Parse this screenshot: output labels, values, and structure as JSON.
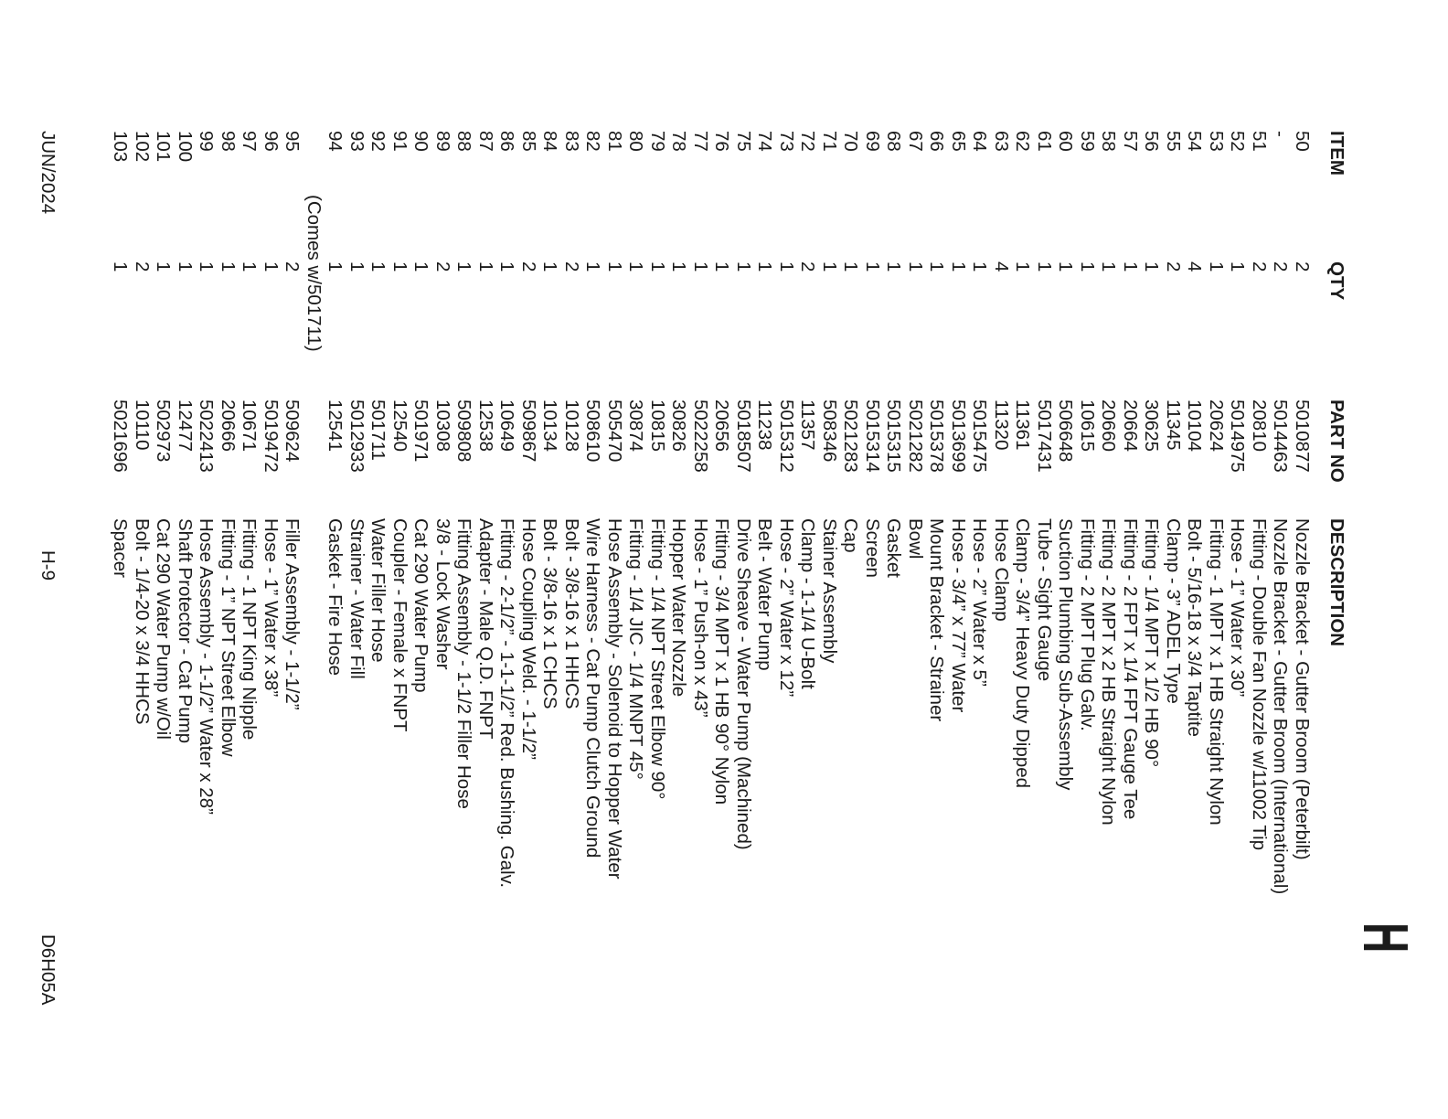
{
  "page": {
    "section_letter": "H",
    "table": {
      "headers": {
        "item": "ITEM",
        "qty": "QTY",
        "part": "PART NO",
        "desc": "DESCRIPTION"
      },
      "rows": [
        {
          "item": "50",
          "qty": "2",
          "part": "5010877",
          "desc": "Nozzle Bracket - Gutter Broom (Peterbilt)"
        },
        {
          "item": "-",
          "qty": "2",
          "part": "5014463",
          "desc": "Nozzle Bracket - Gutter Broom (International)"
        },
        {
          "item": "51",
          "qty": "2",
          "part": "20810",
          "desc": "Fitting - Double Fan Nozzle w/11002 Tip"
        },
        {
          "item": "52",
          "qty": "1",
          "part": "5014975",
          "desc": "Hose - 1” Water x 30”"
        },
        {
          "item": "53",
          "qty": "1",
          "part": "20624",
          "desc": "Fitting - 1 MPT x 1 HB Straight Nylon"
        },
        {
          "item": "54",
          "qty": "4",
          "part": "10104",
          "desc": "Bolt - 5/16-18 x 3/4 Taptite"
        },
        {
          "item": "55",
          "qty": "2",
          "part": "11345",
          "desc": "Clamp - 3” ADEL Type"
        },
        {
          "item": "56",
          "qty": "1",
          "part": "30625",
          "desc": "Fitting - 1/4 MPT x 1/2 HB 90°"
        },
        {
          "item": "57",
          "qty": "1",
          "part": "20664",
          "desc": "Fitting - 2 FPT x 1/4 FPT Gauge Tee"
        },
        {
          "item": "58",
          "qty": "1",
          "part": "20660",
          "desc": "Fitting - 2 MPT x 2 HB Straight Nylon"
        },
        {
          "item": "59",
          "qty": "1",
          "part": "10615",
          "desc": "Fitting - 2 MPT Plug Galv."
        },
        {
          "item": "60",
          "qty": "1",
          "part": "506648",
          "desc": "Suction Plumbing Sub-Assembly"
        },
        {
          "item": "61",
          "qty": "1",
          "part": "5017431",
          "desc": "Tube - Sight Gauge"
        },
        {
          "item": "62",
          "qty": "1",
          "part": "11361",
          "desc": "Clamp - 3/4” Heavy Duty Dipped"
        },
        {
          "item": "63",
          "qty": "4",
          "part": "11320",
          "desc": "Hose Clamp"
        },
        {
          "item": "64",
          "qty": "1",
          "part": "5015475",
          "desc": "Hose - 2” Water x 5”"
        },
        {
          "item": "65",
          "qty": "1",
          "part": "5013699",
          "desc": "Hose - 3/4” x 77” Water"
        },
        {
          "item": "66",
          "qty": "1",
          "part": "5015378",
          "desc": "Mount Bracket - Strainer"
        },
        {
          "item": "67",
          "qty": "1",
          "part": "5021282",
          "desc": "Bowl"
        },
        {
          "item": "68",
          "qty": "1",
          "part": "5015315",
          "desc": "Gasket"
        },
        {
          "item": "69",
          "qty": "1",
          "part": "5015314",
          "desc": "Screen"
        },
        {
          "item": "70",
          "qty": "1",
          "part": "5021283",
          "desc": "Cap"
        },
        {
          "item": "71",
          "qty": "1",
          "part": "508346",
          "desc": "Stainer Assembly"
        },
        {
          "item": "72",
          "qty": "2",
          "part": "11357",
          "desc": "Clamp - 1-1/4 U-Bolt"
        },
        {
          "item": "73",
          "qty": "1",
          "part": "5015312",
          "desc": "Hose - 2” Water x 12”"
        },
        {
          "item": "74",
          "qty": "1",
          "part": "11238",
          "desc": "Belt - Water Pump"
        },
        {
          "item": "75",
          "qty": "1",
          "part": "5018507",
          "desc": "Drive Sheave - Water Pump (Machined)"
        },
        {
          "item": "76",
          "qty": "1",
          "part": "20656",
          "desc": "Fitting - 3/4 MPT x 1 HB 90° Nylon"
        },
        {
          "item": "77",
          "qty": "1",
          "part": "5022258",
          "desc": "Hose - 1” Push-on x 43”"
        },
        {
          "item": "78",
          "qty": "1",
          "part": "30826",
          "desc": "Hopper Water Nozzle"
        },
        {
          "item": "79",
          "qty": "1",
          "part": "10815",
          "desc": "Fitting - 1/4 NPT Street Elbow 90°"
        },
        {
          "item": "80",
          "qty": "1",
          "part": "30874",
          "desc": "Fitting - 1/4 JIC - 1/4 MNPT 45°"
        },
        {
          "item": "81",
          "qty": "1",
          "part": "505470",
          "desc": "Hose Assembly - Solenoid to Hopper Water"
        },
        {
          "item": "82",
          "qty": "1",
          "part": "508610",
          "desc": "Wire Harness - Cat Pump Clutch Ground"
        },
        {
          "item": "83",
          "qty": "2",
          "part": "10128",
          "desc": "Bolt - 3/8-16 x 1 HHCS"
        },
        {
          "item": "84",
          "qty": "1",
          "part": "10134",
          "desc": "Bolt - 3/8-16 x 1 CHCS"
        },
        {
          "item": "85",
          "qty": "2",
          "part": "509867",
          "desc": "Hose Coupling Weld. - 1-1/2”"
        },
        {
          "item": "86",
          "qty": "1",
          "part": "10649",
          "desc": "Fitting - 2-1/2” - 1-1-1/2” Red. Bushing. Galv."
        },
        {
          "item": "87",
          "qty": "1",
          "part": "12538",
          "desc": "Adapter - Male Q.D. FNPT"
        },
        {
          "item": "88",
          "qty": "1",
          "part": "509808",
          "desc": "Fitting Assembly - 1-1/2 Filler Hose"
        },
        {
          "item": "89",
          "qty": "2",
          "part": "10308",
          "desc": "3/8 - Lock Washer"
        },
        {
          "item": "90",
          "qty": "1",
          "part": "501971",
          "desc": "Cat 290 Water Pump"
        },
        {
          "item": "91",
          "qty": "1",
          "part": "12540",
          "desc": "Coupler - Female x FNPT"
        },
        {
          "item": "92",
          "qty": "1",
          "part": "501711",
          "desc": "Water Filler Hose"
        },
        {
          "item": "93",
          "qty": "1",
          "part": "5012933",
          "desc": "Strainer - Water Fill"
        },
        {
          "item": "94",
          "qty": "1",
          "part": "12541",
          "desc": "Gasket - Fire Hose"
        },
        {
          "note": "(Comes w/501711)"
        },
        {
          "item": "95",
          "qty": "2",
          "part": "509624",
          "desc": "Filler Assembly - 1-1/2”"
        },
        {
          "item": "96",
          "qty": "1",
          "part": "5019472",
          "desc": "Hose - 1” Water x 38”"
        },
        {
          "item": "97",
          "qty": "1",
          "part": "10671",
          "desc": "Fitting - 1 NPT King Nipple"
        },
        {
          "item": "98",
          "qty": "1",
          "part": "20666",
          "desc": "Fitting - 1” NPT Street Elbow"
        },
        {
          "item": "99",
          "qty": "1",
          "part": "5022413",
          "desc": "Hose Assembly - 1-1/2” Water x 28”"
        },
        {
          "item": "100",
          "qty": "1",
          "part": "12477",
          "desc": "Shaft Protector - Cat Pump"
        },
        {
          "item": "101",
          "qty": "1",
          "part": "502973",
          "desc": "Cat 290 Water Pump w/Oil"
        },
        {
          "item": "102",
          "qty": "2",
          "part": "10110",
          "desc": "Bolt - 1/4-20 x 3/4 HHCS"
        },
        {
          "item": "103",
          "qty": "1",
          "part": "5021696",
          "desc": "Spacer"
        }
      ]
    },
    "footer": {
      "date": "JUN/2024",
      "page_number": "H-9",
      "doc_code": "D6H05A"
    }
  }
}
